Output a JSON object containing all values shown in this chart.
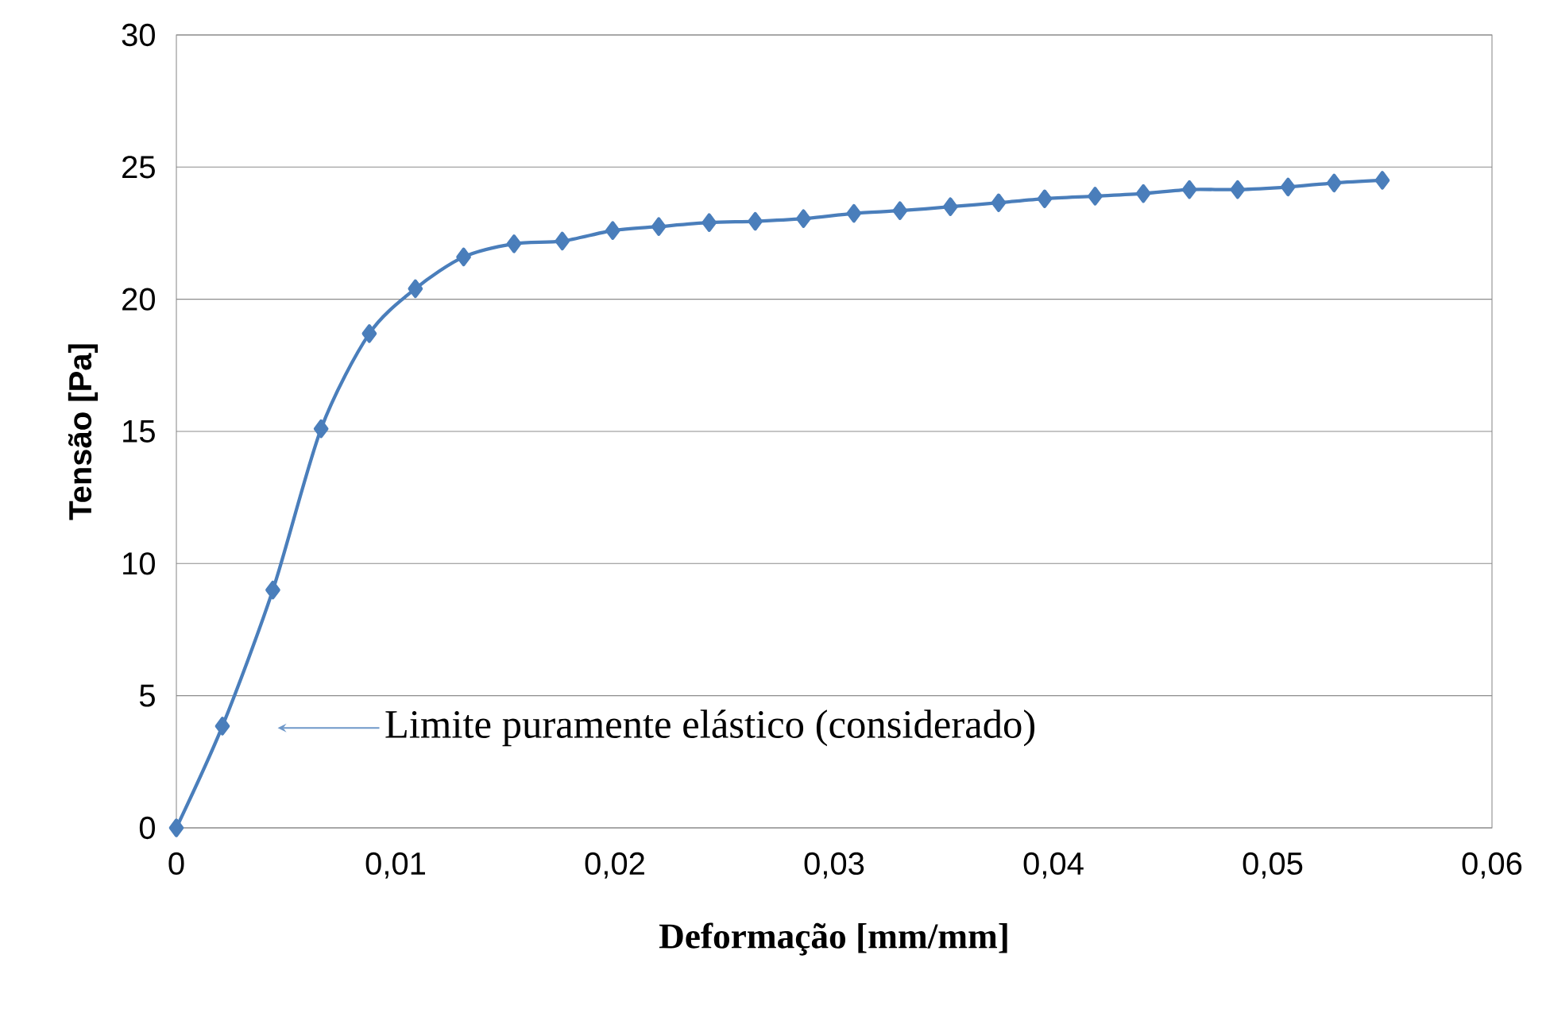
{
  "chart_data": {
    "type": "line",
    "xlabel": "Deformação [mm/mm]",
    "ylabel": "Tensão [Pa]",
    "x": [
      0,
      0.0021,
      0.0044,
      0.0066,
      0.0088,
      0.0109,
      0.0131,
      0.0154,
      0.0176,
      0.0199,
      0.022,
      0.0243,
      0.0264,
      0.0286,
      0.0309,
      0.033,
      0.0353,
      0.0375,
      0.0396,
      0.0419,
      0.0441,
      0.0462,
      0.0484,
      0.0507,
      0.0528,
      0.055
    ],
    "series": [
      {
        "color": "#4a7ebb",
        "values": [
          0,
          3.85,
          9.0,
          15.1,
          18.7,
          20.4,
          21.6,
          22.1,
          22.2,
          22.6,
          22.75,
          22.9,
          22.95,
          23.05,
          23.25,
          23.35,
          23.5,
          23.65,
          23.8,
          23.9,
          24.0,
          24.15,
          24.15,
          24.25,
          24.4,
          24.5
        ]
      }
    ],
    "xlim": [
      0,
      0.06
    ],
    "ylim": [
      0,
      30
    ],
    "xticks": [
      0,
      {
        "value": 0.01,
        "label": "0,01"
      },
      {
        "value": 0.02,
        "label": "0,02"
      },
      {
        "value": 0.03,
        "label": "0,03"
      },
      {
        "value": 0.04,
        "label": "0,04"
      },
      {
        "value": 0.05,
        "label": "0,05"
      },
      {
        "value": 0.06,
        "label": "0,06"
      }
    ],
    "yticks": [
      0,
      5,
      10,
      15,
      20,
      25,
      30
    ],
    "grid": "y",
    "marker": "diamond",
    "line_style": "solid",
    "annotations": [
      "Limite puramente elástico (considerado)"
    ]
  }
}
